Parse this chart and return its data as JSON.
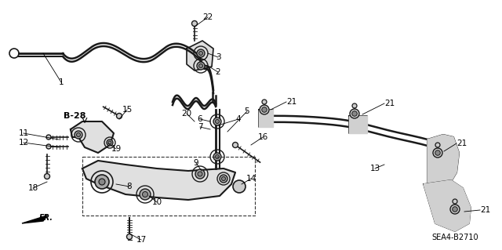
{
  "fig_width": 6.4,
  "fig_height": 3.19,
  "background_color": "#ffffff",
  "line_color": "#1a1a1a",
  "diagram_code": "SEA4-B2710"
}
